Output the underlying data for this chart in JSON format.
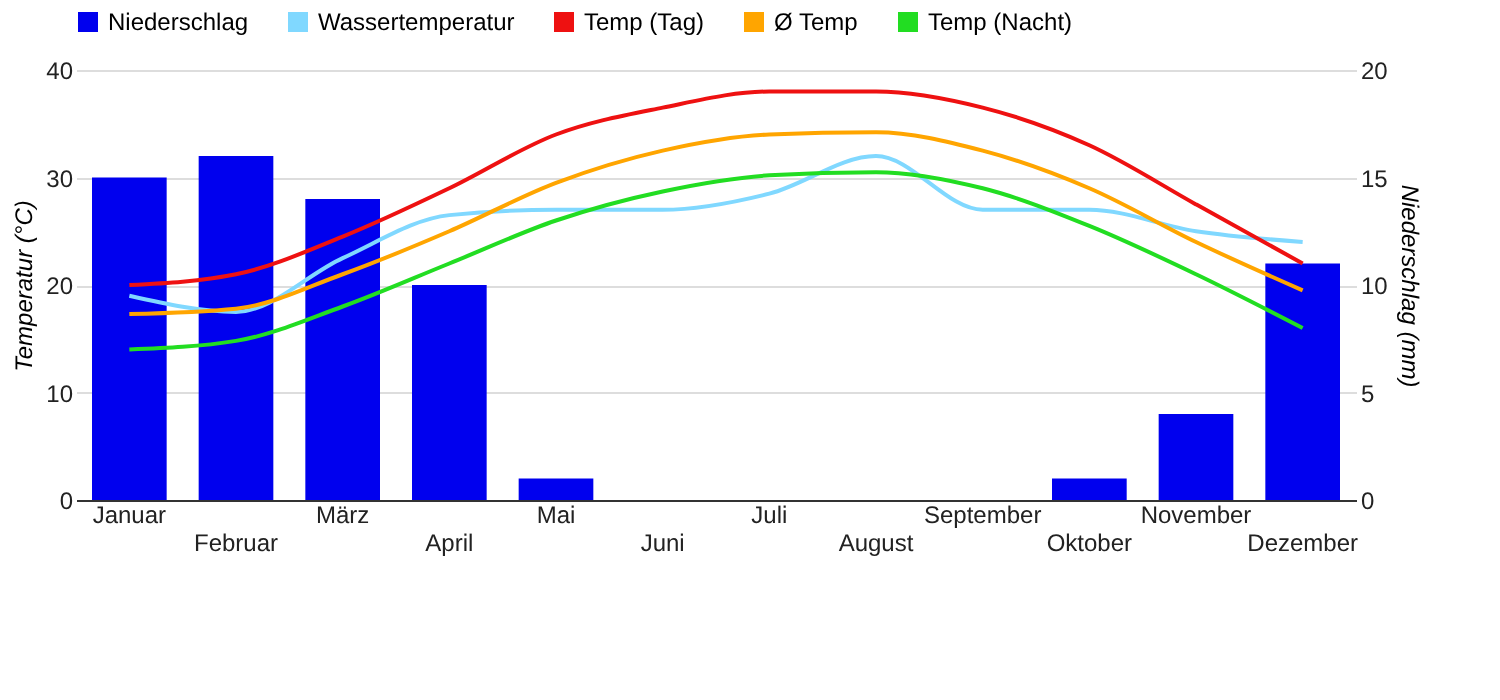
{
  "chart_data": {
    "type": "line",
    "categories": [
      "Januar",
      "Februar",
      "März",
      "April",
      "Mai",
      "Juni",
      "Juli",
      "August",
      "September",
      "Oktober",
      "November",
      "Dezember"
    ],
    "ylabel": "Temperatur (°C)",
    "y2label": "Niederschlag (mm)",
    "ylim": [
      0,
      40
    ],
    "yticks": [
      0,
      10,
      20,
      30,
      40
    ],
    "y2lim": [
      0,
      20
    ],
    "y2ticks": [
      0,
      5,
      10,
      15,
      20
    ],
    "grid": "y",
    "legend": "top",
    "marker": "none",
    "line_style": "solid",
    "series": [
      {
        "name": "Niederschlag",
        "type": "bar",
        "axis": "y2",
        "color": "#0000ee",
        "values": [
          15,
          16,
          14,
          10,
          1,
          0,
          0,
          0,
          0,
          1,
          4,
          11
        ]
      },
      {
        "name": "Wassertemperatur",
        "color": "#80d8ff",
        "values": [
          19,
          17.5,
          22.5,
          26.5,
          27,
          27,
          28.5,
          32,
          27,
          27,
          25,
          24
        ]
      },
      {
        "name": "Temp (Tag)",
        "color": "#ee1111",
        "values": [
          20,
          21,
          24.5,
          29,
          34,
          36.5,
          38,
          38,
          36.5,
          33,
          27.5,
          22
        ]
      },
      {
        "name": "Ø Temp",
        "color": "#ffa500",
        "values": [
          17.3,
          17.8,
          21,
          25,
          29.5,
          32.5,
          34,
          34.2,
          32.5,
          29,
          24,
          19.5
        ]
      },
      {
        "name": "Temp (Nacht)",
        "color": "#22dd22",
        "values": [
          14,
          14.8,
          18,
          22,
          26,
          28.7,
          30.2,
          30.5,
          29,
          25.5,
          21,
          16
        ]
      }
    ]
  }
}
